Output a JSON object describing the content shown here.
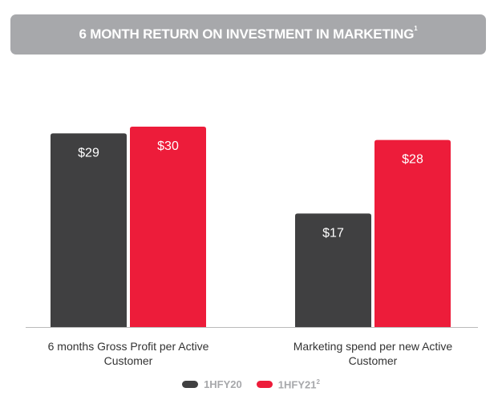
{
  "chart_data": {
    "type": "bar",
    "title": "6 MONTH RETURN ON INVESTMENT IN MARKETING",
    "title_footnote": "1",
    "categories": [
      "6 months Gross Profit per Active Customer",
      "Marketing spend per new Active Customer"
    ],
    "series": [
      {
        "name": "1HFY20",
        "footnote": "",
        "color": "#404041",
        "values": [
          29,
          17
        ],
        "labels": [
          "$29",
          "$17"
        ]
      },
      {
        "name": "1HFY21",
        "footnote": "2",
        "color": "#ed1c3a",
        "values": [
          30,
          28
        ],
        "labels": [
          "$30",
          "$28"
        ]
      }
    ],
    "ylim": [
      0,
      30
    ],
    "grid": false,
    "legend_position": "bottom",
    "xlabel": "",
    "ylabel": ""
  }
}
